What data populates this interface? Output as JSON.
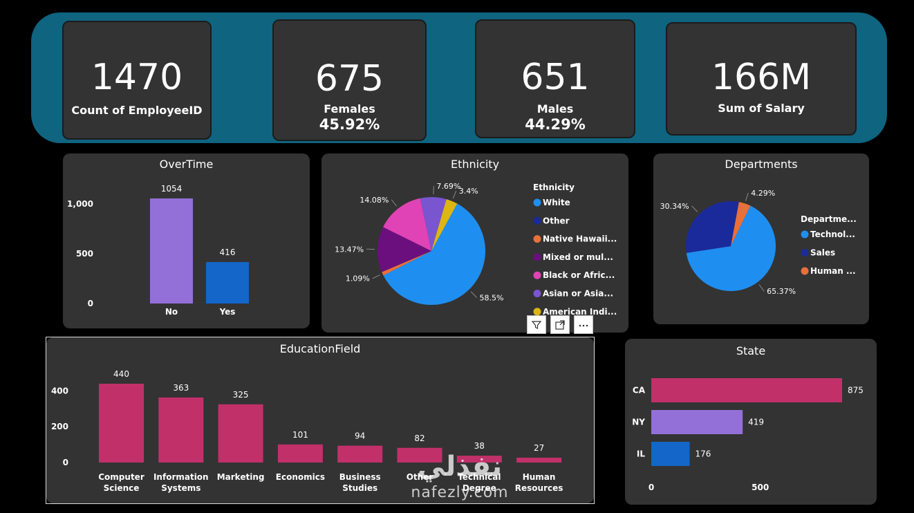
{
  "kpis": [
    {
      "value": "1470",
      "label": "Count of EmployeeID",
      "pct": ""
    },
    {
      "value": "675",
      "label": "Females",
      "pct": "45.92%"
    },
    {
      "value": "651",
      "label": "Males",
      "pct": "44.29%"
    },
    {
      "value": "166M",
      "label": "Sum of Salary",
      "pct": ""
    }
  ],
  "colors": {
    "banner": "#0f6480",
    "card": "#333333",
    "purple": "#9370d8",
    "blue": "#1466c8",
    "pink": "#c2306a"
  },
  "chart_data": [
    {
      "id": "overtime",
      "type": "bar",
      "title": "OverTime",
      "categories": [
        "No",
        "Yes"
      ],
      "values": [
        1054,
        416
      ],
      "data_labels": [
        "1054",
        "416"
      ],
      "colors": [
        "#9370d8",
        "#1466c8"
      ],
      "ylim": [
        0,
        1054
      ],
      "yticks": [
        0,
        500,
        1000
      ],
      "ytick_labels": [
        "0",
        "500",
        "1,000"
      ]
    },
    {
      "id": "ethnicity",
      "type": "pie",
      "title": "Ethnicity",
      "legend_title": "Ethnicity",
      "legend_position": "right",
      "slices": [
        {
          "label": "White",
          "value": 58.5,
          "display": "58.5%",
          "color": "#1f8ef1"
        },
        {
          "label": "Other",
          "value": 0,
          "display": "",
          "color": "#1a2a9a"
        },
        {
          "label": "Native Hawaii...",
          "value": 1.09,
          "display": "1.09%",
          "color": "#e8703a"
        },
        {
          "label": "Mixed or mul...",
          "value": 13.47,
          "display": "13.47%",
          "color": "#6b0f7e"
        },
        {
          "label": "Black or Afric...",
          "value": 14.08,
          "display": "14.08%",
          "color": "#e043b5"
        },
        {
          "label": "Asian or Asia...",
          "value": 7.69,
          "display": "7.69%",
          "color": "#7a55d0"
        },
        {
          "label": "American Indi...",
          "value": 3.4,
          "display": "3.4%",
          "color": "#dcb613"
        }
      ]
    },
    {
      "id": "departments",
      "type": "pie",
      "title": "Departments",
      "legend_title": "Departme...",
      "legend_position": "right",
      "slices": [
        {
          "label": "Technol...",
          "value": 65.37,
          "display": "65.37%",
          "color": "#1f8ef1"
        },
        {
          "label": "Sales",
          "value": 30.34,
          "display": "30.34%",
          "color": "#1a2a9a"
        },
        {
          "label": "Human ...",
          "value": 4.29,
          "display": "4.29%",
          "color": "#e8703a"
        }
      ]
    },
    {
      "id": "education",
      "type": "bar",
      "title": "EducationField",
      "categories": [
        [
          "Computer",
          "Science"
        ],
        [
          "Information",
          "Systems"
        ],
        [
          "Marketing"
        ],
        [
          "Economics"
        ],
        [
          "Business",
          "Studies"
        ],
        [
          "Other"
        ],
        [
          "Technical",
          "Degree"
        ],
        [
          "Human",
          "Resources"
        ]
      ],
      "values": [
        440,
        363,
        325,
        101,
        94,
        82,
        38,
        27
      ],
      "data_labels": [
        "440",
        "363",
        "325",
        "101",
        "94",
        "82",
        "38",
        "27"
      ],
      "color": "#c2306a",
      "ylim": [
        0,
        440
      ],
      "yticks": [
        0,
        200,
        400
      ],
      "ytick_labels": [
        "0",
        "200",
        "400"
      ]
    },
    {
      "id": "state",
      "type": "bar",
      "orientation": "horizontal",
      "title": "State",
      "categories": [
        "CA",
        "NY",
        "IL"
      ],
      "values": [
        875,
        419,
        176
      ],
      "data_labels": [
        "875",
        "419",
        "176"
      ],
      "colors": [
        "#c2306a",
        "#9370d8",
        "#1466c8"
      ],
      "xlim": [
        0,
        875
      ],
      "xticks": [
        0,
        500
      ],
      "xtick_labels": [
        "0",
        "500"
      ]
    }
  ],
  "toolbar": {
    "filter_icon": "filter-icon",
    "focus_icon": "focus-mode-icon",
    "more_icon": "more-options-icon"
  },
  "watermark": {
    "mark": "نفذلي",
    "text": "nafezly.com"
  }
}
